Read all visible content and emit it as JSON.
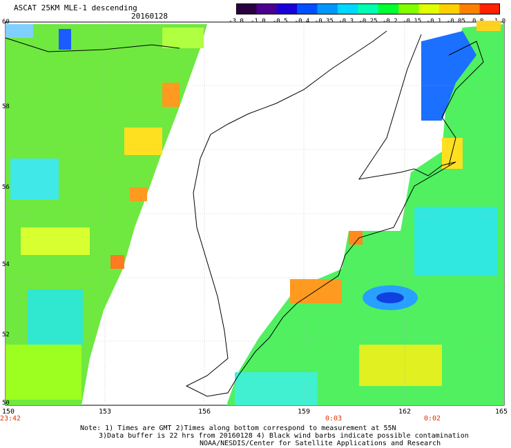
{
  "header": {
    "title": "ASCAT 25KM MLE-1 descending",
    "date": "20160128"
  },
  "colorbar": {
    "labels": [
      "-3.0",
      "-1.0",
      "-0.5",
      "-0.4",
      "-0.35",
      "-0.3",
      "-0.25",
      "-0.2",
      "-0.15",
      "-0.1",
      "-0.05",
      "0.0",
      "1.0"
    ],
    "colors": [
      "#2a0040",
      "#4b0090",
      "#1a00d8",
      "#0050ff",
      "#0098ff",
      "#00d8ff",
      "#00ffb0",
      "#00ff30",
      "#80ff00",
      "#e0ff00",
      "#ffd000",
      "#ff8000",
      "#ff2000"
    ]
  },
  "axes": {
    "y_labels": [
      "60",
      "58",
      "56",
      "54",
      "52",
      "50"
    ],
    "x_labels": [
      "150",
      "153",
      "156",
      "159",
      "162",
      "165"
    ],
    "time_labels": [
      "23:42",
      "0:03",
      "0:02"
    ]
  },
  "notes": {
    "line1": "Note: 1) Times are GMT 2)Times along bottom correspond to measurement at 55N",
    "line2": "3)Data buffer is 22 hrs from 20160128 4) Black wind barbs indicate possible contamination",
    "line3": "NOAA/NESDIS/Center for Satellite Applications and Research"
  }
}
